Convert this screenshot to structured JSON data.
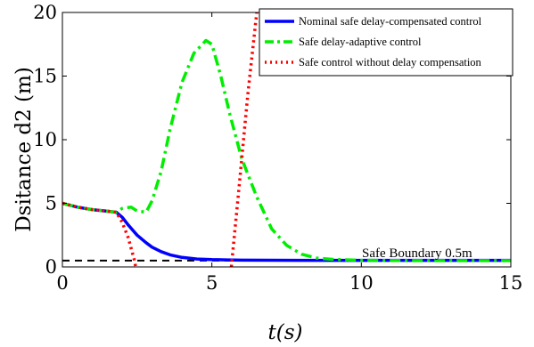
{
  "chart_data": {
    "type": "line",
    "title": "",
    "xlabel": "t(s)",
    "ylabel": "Dsitance  d2 (m)",
    "xlim": [
      0,
      15
    ],
    "ylim": [
      0,
      20
    ],
    "xticks": [
      "0",
      "5",
      "10",
      "15"
    ],
    "yticks": [
      "0",
      "5",
      "10",
      "15",
      "20"
    ],
    "grid": false,
    "legend_position": "top-right",
    "series": [
      {
        "name": "Nominal safe delay-compensated control",
        "color": "#0000ff",
        "style": "solid",
        "x": [
          0,
          0.5,
          1.0,
          1.5,
          1.8,
          2.0,
          2.2,
          2.5,
          2.8,
          3.0,
          3.3,
          3.6,
          4.0,
          4.5,
          5.0,
          6.0,
          8.0,
          10.0,
          12.0,
          15.0
        ],
        "y": [
          5.0,
          4.7,
          4.5,
          4.38,
          4.3,
          3.9,
          3.3,
          2.5,
          1.9,
          1.55,
          1.2,
          0.95,
          0.75,
          0.62,
          0.57,
          0.53,
          0.52,
          0.52,
          0.52,
          0.52
        ]
      },
      {
        "name": "Safe delay-adaptive control",
        "color": "#00ee00",
        "style": "dash-dot",
        "x": [
          0,
          0.5,
          1.0,
          1.5,
          1.8,
          2.0,
          2.3,
          2.5,
          2.8,
          3.0,
          3.3,
          3.6,
          4.0,
          4.4,
          4.8,
          5.0,
          5.3,
          5.6,
          6.0,
          6.5,
          7.0,
          7.5,
          8.0,
          8.5,
          9.0,
          10.0,
          12.0,
          15.0
        ],
        "y": [
          5.0,
          4.7,
          4.5,
          4.38,
          4.3,
          4.6,
          4.7,
          4.4,
          4.3,
          5.2,
          7.5,
          10.8,
          14.5,
          16.8,
          17.8,
          17.5,
          15.0,
          12.0,
          8.5,
          5.5,
          3.0,
          1.7,
          1.0,
          0.7,
          0.6,
          0.52,
          0.5,
          0.5
        ]
      },
      {
        "name": "Safe control without delay compensation",
        "color": "#ff0000",
        "style": "dotted",
        "segments": [
          {
            "x": [
              0,
              0.5,
              1.0,
              1.5,
              1.8,
              2.0,
              2.2,
              2.4,
              2.45
            ],
            "y": [
              5.0,
              4.7,
              4.5,
              4.38,
              4.3,
              3.5,
              2.3,
              0.6,
              0.0
            ]
          },
          {
            "x": [
              5.65,
              5.9,
              6.2,
              6.5
            ],
            "y": [
              0.0,
              6.0,
              13.5,
              20.0
            ]
          }
        ]
      }
    ],
    "reference_line": {
      "y": 0.5,
      "color": "#000000",
      "style": "dashed"
    },
    "annotation": "Safe Boundary 0.5m"
  }
}
